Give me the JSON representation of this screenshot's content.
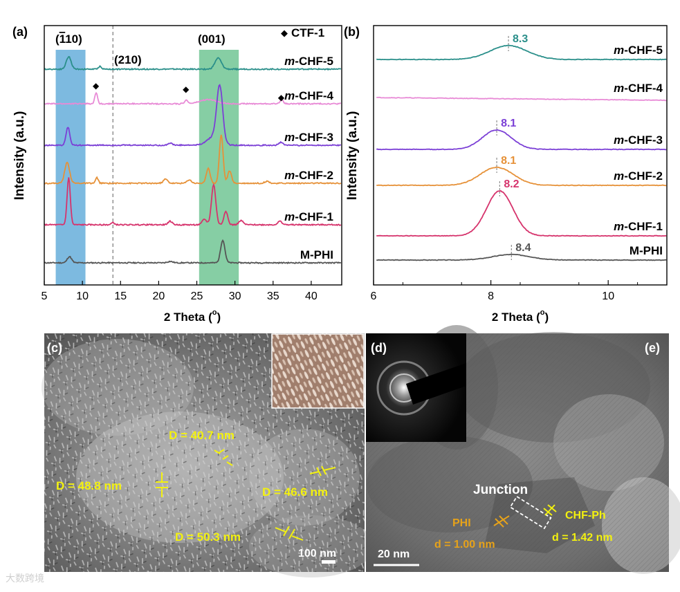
{
  "figure": {
    "colors": {
      "cyan_band": "#6fb3dd",
      "green_band": "#79c99a",
      "m_phi": "#555555",
      "chf1": "#d6336c",
      "chf2": "#e69138",
      "chf3": "#7b3fd6",
      "chf4": "#e88ad6",
      "chf5": "#2a8f8a",
      "yellow": "#f3f10f",
      "orange": "#e6a21a"
    },
    "panel_e": {
      "label": "(e)",
      "junction": "Junction",
      "phi_label": "PHI",
      "phi_d": "d = 1.00 nm",
      "chf_label": "CHF-Ph",
      "chf_d": "d = 1.42 nm",
      "scale": "20 nm"
    },
    "panel_d": {
      "label": "(d)"
    },
    "panel_c": {
      "label": "(c)",
      "scale": "100 nm",
      "annotations": [
        "D = 40.7 nm",
        "D = 48.8 nm",
        "D = 46.6 nm",
        "D = 50.3 nm"
      ]
    },
    "watermark": "大数跨境"
  },
  "chart_data": [
    {
      "type": "line",
      "panel": "(a)",
      "xlabel": "2 Theta (°)",
      "xlabel_main": "2 Theta (",
      "xlabel_deg": "o",
      "xlabel_close": ")",
      "ylabel": "Intensity (a.u.)",
      "xlim": [
        5,
        44
      ],
      "xticks": [
        5,
        10,
        15,
        20,
        25,
        30,
        35,
        40
      ],
      "legend": "CTF-1",
      "plane_110": "(1̄10)",
      "plane_110_open": "(",
      "plane_110_bar1": "1",
      "plane_110_rest": "10)",
      "plane_210": "(210)",
      "plane_001": "(001)",
      "dashed_line_x": 14,
      "bands": [
        {
          "from": 6.5,
          "to": 10.4
        },
        {
          "from": 25.3,
          "to": 30.5
        }
      ],
      "ctf_markers": [
        11.8,
        23.6,
        36.1
      ],
      "series": [
        {
          "name": "m-CHF-5",
          "prefix": "m",
          "suffix": "-CHF-5",
          "offset": 280,
          "peaks": [
            [
              8.2,
              18,
              0.45
            ],
            [
              27.8,
              16,
              0.6
            ],
            [
              12.3,
              4,
              0.3
            ]
          ]
        },
        {
          "name": "m-CHF-4",
          "prefix": "m",
          "suffix": "-CHF-4",
          "offset": 230,
          "peaks": [
            [
              11.8,
              16,
              0.25
            ],
            [
              23.6,
              5,
              0.3
            ],
            [
              26.5,
              6,
              1.5
            ],
            [
              36.1,
              6,
              0.3
            ]
          ]
        },
        {
          "name": "m-CHF-3",
          "prefix": "m",
          "suffix": "-CHF-3",
          "offset": 170,
          "peaks": [
            [
              8.1,
              26,
              0.35
            ],
            [
              28.0,
              80,
              0.55
            ],
            [
              27.2,
              12,
              1.2
            ],
            [
              21.5,
              3,
              0.4
            ],
            [
              36.0,
              4,
              0.4
            ]
          ]
        },
        {
          "name": "m-CHF-2",
          "prefix": "m",
          "suffix": "-CHF-2",
          "offset": 115,
          "peaks": [
            [
              8.0,
              30,
              0.45
            ],
            [
              28.2,
              70,
              0.35
            ],
            [
              26.5,
              22,
              0.35
            ],
            [
              29.3,
              18,
              0.35
            ],
            [
              11.9,
              8,
              0.25
            ],
            [
              20.9,
              6,
              0.4
            ],
            [
              24.0,
              5,
              0.4
            ],
            [
              34.2,
              3,
              0.4
            ]
          ]
        },
        {
          "name": "m-CHF-1",
          "prefix": "m",
          "suffix": "-CHF-1",
          "offset": 55,
          "peaks": [
            [
              8.2,
              68,
              0.3
            ],
            [
              27.2,
              58,
              0.4
            ],
            [
              28.8,
              20,
              0.35
            ],
            [
              26.0,
              8,
              0.4
            ],
            [
              21.5,
              5,
              0.4
            ],
            [
              30.8,
              6,
              0.4
            ],
            [
              35.9,
              5,
              0.4
            ],
            [
              14.0,
              3,
              0.3
            ]
          ]
        },
        {
          "name": "M-PHI",
          "prefix": "",
          "suffix": "M-PHI",
          "offset": 0,
          "peaks": [
            [
              8.3,
              9,
              0.4
            ],
            [
              28.4,
              33,
              0.4
            ],
            [
              21.5,
              2,
              0.5
            ]
          ]
        }
      ]
    },
    {
      "type": "line",
      "panel": "(b)",
      "xlabel": "2 Theta (°)",
      "xlabel_main": "2 Theta (",
      "xlabel_deg": "o",
      "xlabel_close": ")",
      "ylabel": "Intensity (a.u.)",
      "xlim": [
        6,
        11
      ],
      "xticks": [
        6,
        8,
        10
      ],
      "series": [
        {
          "name": "m-CHF-5",
          "prefix": "m",
          "suffix": "-CHF-5",
          "offset": 290,
          "peak_label": "8.3",
          "center": 8.3,
          "amp": 20,
          "width": 0.45
        },
        {
          "name": "m-CHF-4",
          "prefix": "m",
          "suffix": "-CHF-4",
          "offset": 235,
          "peak_label": "",
          "center": 8.3,
          "amp": 0,
          "width": 0.45
        },
        {
          "name": "m-CHF-3",
          "prefix": "m",
          "suffix": "-CHF-3",
          "offset": 160,
          "peak_label": "8.1",
          "center": 8.1,
          "amp": 28,
          "width": 0.35
        },
        {
          "name": "m-CHF-2",
          "prefix": "m",
          "suffix": "-CHF-2",
          "offset": 108,
          "peak_label": "8.1",
          "center": 8.1,
          "amp": 26,
          "width": 0.4
        },
        {
          "name": "m-CHF-1",
          "prefix": "m",
          "suffix": "-CHF-1",
          "offset": 35,
          "peak_label": "8.2",
          "center": 8.15,
          "amp": 65,
          "width": 0.32
        },
        {
          "name": "M-PHI",
          "prefix": "",
          "suffix": "M-PHI",
          "offset": 0,
          "peak_label": "8.4",
          "center": 8.35,
          "amp": 8,
          "width": 0.45
        }
      ]
    }
  ]
}
